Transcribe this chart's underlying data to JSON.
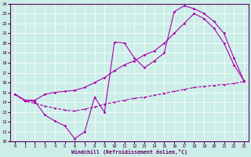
{
  "xlabel": "Windchill (Refroidissement éolien,°C)",
  "xlim": [
    -0.5,
    23.5
  ],
  "ylim": [
    10,
    24
  ],
  "xticks": [
    0,
    1,
    2,
    3,
    4,
    5,
    6,
    7,
    8,
    9,
    10,
    11,
    12,
    13,
    14,
    15,
    16,
    17,
    18,
    19,
    20,
    21,
    22,
    23
  ],
  "yticks": [
    10,
    11,
    12,
    13,
    14,
    15,
    16,
    17,
    18,
    19,
    20,
    21,
    22,
    23,
    24
  ],
  "background_color": "#cceee8",
  "line_color": "#aa00aa",
  "line1_x": [
    0,
    1,
    2,
    3,
    4,
    5,
    6,
    7,
    8,
    9,
    10,
    11,
    12,
    13,
    14,
    15,
    16,
    17,
    18,
    19,
    20,
    21,
    22,
    23
  ],
  "line1_y": [
    14.8,
    14.2,
    14.1,
    12.7,
    12.1,
    11.6,
    10.3,
    11.0,
    14.5,
    13.0,
    20.1,
    20.0,
    18.5,
    17.5,
    18.2,
    19.0,
    23.2,
    23.8,
    23.5,
    23.0,
    22.2,
    21.0,
    18.5,
    16.2
  ],
  "line2_x": [
    0,
    1,
    2,
    3,
    4,
    5,
    6,
    7,
    8,
    9,
    10,
    11,
    12,
    13,
    14,
    15,
    16,
    17,
    18,
    19,
    20,
    21,
    22,
    23
  ],
  "line2_y": [
    14.8,
    14.2,
    14.2,
    14.8,
    15.0,
    15.1,
    15.2,
    15.5,
    16.0,
    16.5,
    17.2,
    17.8,
    18.2,
    18.8,
    19.2,
    20.0,
    21.0,
    22.0,
    23.0,
    22.5,
    21.5,
    20.0,
    17.8,
    16.2
  ],
  "line3_x": [
    0,
    1,
    2,
    3,
    4,
    5,
    6,
    7,
    8,
    9,
    10,
    11,
    12,
    13,
    14,
    15,
    16,
    17,
    18,
    19,
    20,
    21,
    22,
    23
  ],
  "line3_y": [
    14.8,
    14.1,
    13.9,
    13.6,
    13.4,
    13.2,
    13.1,
    13.3,
    13.5,
    13.8,
    14.0,
    14.2,
    14.4,
    14.5,
    14.7,
    14.9,
    15.1,
    15.3,
    15.5,
    15.6,
    15.7,
    15.8,
    15.9,
    16.1
  ]
}
